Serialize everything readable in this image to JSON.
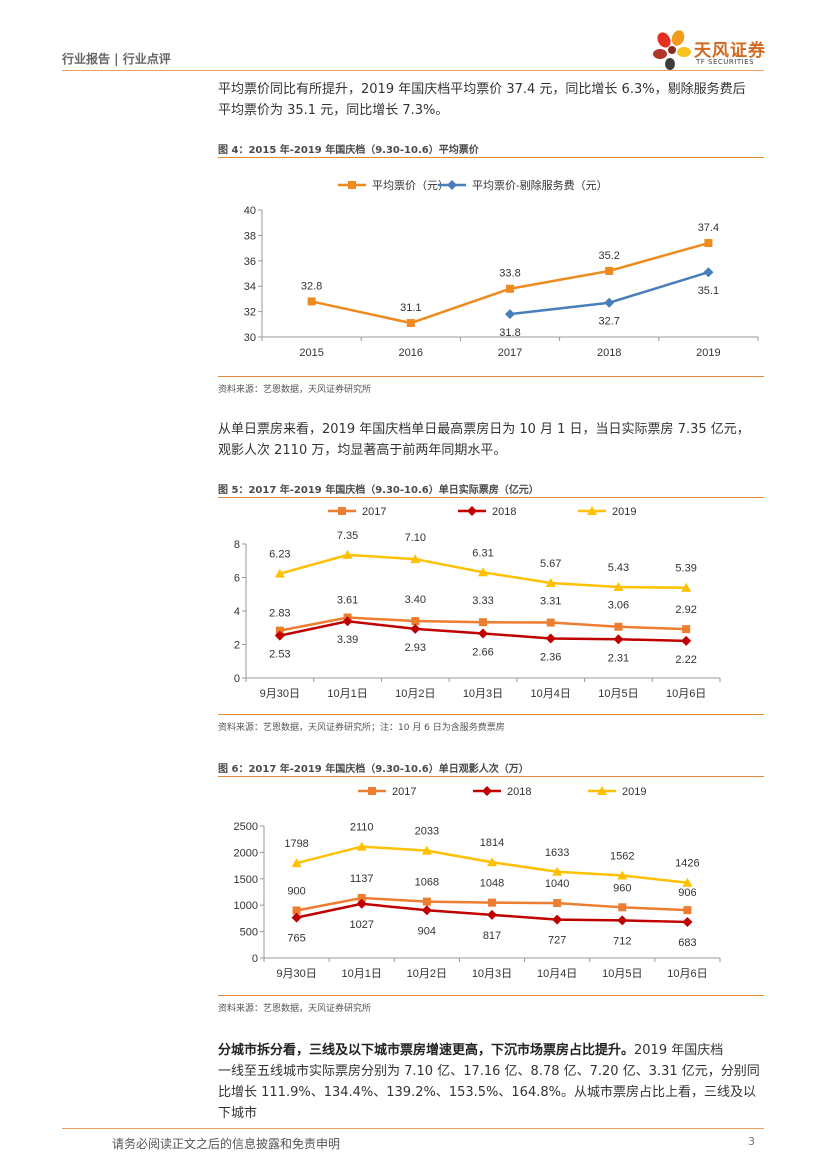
{
  "header": {
    "category": "行业报告 | 行业点评",
    "logo_name": "天风证券",
    "logo_sub": "TF SECURITIES"
  },
  "para1": {
    "line1": "平均票价同比有所提升，2019 年国庆档平均票价 37.4 元，同比增长 6.3%，剔除服务费后",
    "line2": "平均票价为 35.1 元，同比增长 7.3%。"
  },
  "fig4": {
    "title": "图 4：2015 年-2019 年国庆档（9.30-10.6）平均票价",
    "source": "资料来源：艺恩数据，天风证券研究所"
  },
  "para2": {
    "line1": "从单日票房来看，2019 年国庆档单日最高票房日为 10 月 1 日，当日实际票房 7.35 亿元，",
    "line2": "观影人次 2110 万，均显著高于前两年同期水平。"
  },
  "fig5": {
    "title": "图 5：2017 年-2019 年国庆档（9.30-10.6）单日实际票房（亿元）",
    "source": "资料来源：艺恩数据，天风证券研究所；注：10 月 6 日为含服务费票房"
  },
  "fig6": {
    "title": "图 6：2017 年-2019 年国庆档（9.30-10.6）单日观影人次（万）",
    "source": "资料来源：艺恩数据，天风证券研究所"
  },
  "para3": {
    "lead": "分城市拆分看，三线及以下城市票房增速更高，下沉市场票房占比提升。",
    "line1_rest": "2019 年国庆档",
    "line2": "一线至五线城市实际票房分别为 7.10 亿、17.16 亿、8.78 亿、7.20 亿、3.31 亿元，分别同",
    "line3": "比增长 111.9%、134.4%、139.2%、153.5%、164.8%。从城市票房占比上看，三线及以下城市"
  },
  "footer": {
    "disclaimer": "请务必阅读正文之后的信息披露和免责申明",
    "page": "3"
  },
  "colors": {
    "orange": "#ee8a1e",
    "blue": "#4a7ebb",
    "red": "#c00000",
    "yellow": "#ffc000",
    "light_orange": "#ed7d31"
  },
  "chart_data": [
    {
      "type": "line",
      "title": "图 4：2015 年-2019 年国庆档（9.30-10.6）平均票价",
      "categories": [
        "2015",
        "2016",
        "2017",
        "2018",
        "2019"
      ],
      "series": [
        {
          "name": "平均票价（元）",
          "values": [
            32.8,
            31.1,
            33.8,
            35.2,
            37.4
          ],
          "labels": [
            "32.8",
            "31.1",
            "33.8",
            "35.2",
            "37.4"
          ]
        },
        {
          "name": "平均票价-剔除服务费（元）",
          "values": [
            null,
            null,
            31.8,
            32.7,
            35.1
          ],
          "labels": [
            null,
            null,
            "31.8",
            "32.7",
            "35.1"
          ]
        }
      ],
      "ylim": [
        30,
        40
      ],
      "yticks": [
        "30",
        "32",
        "34",
        "36",
        "38",
        "40"
      ],
      "legend": "top"
    },
    {
      "type": "line",
      "title": "图 5：2017 年-2019 年国庆档（9.30-10.6）单日实际票房（亿元）",
      "categories": [
        "9月30日",
        "10月1日",
        "10月2日",
        "10月3日",
        "10月4日",
        "10月5日",
        "10月6日"
      ],
      "series": [
        {
          "name": "2017",
          "values": [
            2.83,
            3.61,
            3.4,
            3.33,
            3.31,
            3.06,
            2.92
          ],
          "labels": [
            "2.83",
            "3.61",
            "3.40",
            "3.33",
            "3.31",
            "3.06",
            "2.92"
          ]
        },
        {
          "name": "2018",
          "values": [
            2.53,
            3.39,
            2.93,
            2.66,
            2.36,
            2.31,
            2.22
          ],
          "labels": [
            "2.53",
            "3.39",
            "2.93",
            "2.66",
            "2.36",
            "2.31",
            "2.22"
          ]
        },
        {
          "name": "2019",
          "values": [
            6.23,
            7.35,
            7.1,
            6.31,
            5.67,
            5.43,
            5.39
          ],
          "labels": [
            "6.23",
            "7.35",
            "7.10",
            "6.31",
            "5.67",
            "5.43",
            "5.39"
          ]
        }
      ],
      "ylim": [
        0,
        8
      ],
      "yticks": [
        "0",
        "2",
        "4",
        "6",
        "8"
      ],
      "legend": "top"
    },
    {
      "type": "line",
      "title": "图 6：2017 年-2019 年国庆档（9.30-10.6）单日观影人次（万）",
      "categories": [
        "9月30日",
        "10月1日",
        "10月2日",
        "10月3日",
        "10月4日",
        "10月5日",
        "10月6日"
      ],
      "series": [
        {
          "name": "2017",
          "values": [
            900,
            1137,
            1068,
            1048,
            1040,
            960,
            906
          ],
          "labels": [
            "900",
            "1137",
            "1068",
            "1048",
            "1040",
            "960",
            "906"
          ]
        },
        {
          "name": "2018",
          "values": [
            765,
            1027,
            904,
            817,
            727,
            712,
            683
          ],
          "labels": [
            "765",
            "1027",
            "904",
            "817",
            "727",
            "712",
            "683"
          ]
        },
        {
          "name": "2019",
          "values": [
            1798,
            2110,
            2033,
            1814,
            1633,
            1562,
            1426
          ],
          "labels": [
            "1798",
            "2110",
            "2033",
            "1814",
            "1633",
            "1562",
            "1426"
          ]
        }
      ],
      "ylim": [
        0,
        2500
      ],
      "yticks": [
        "0",
        "500",
        "1000",
        "1500",
        "2000",
        "2500"
      ],
      "legend": "top"
    }
  ]
}
